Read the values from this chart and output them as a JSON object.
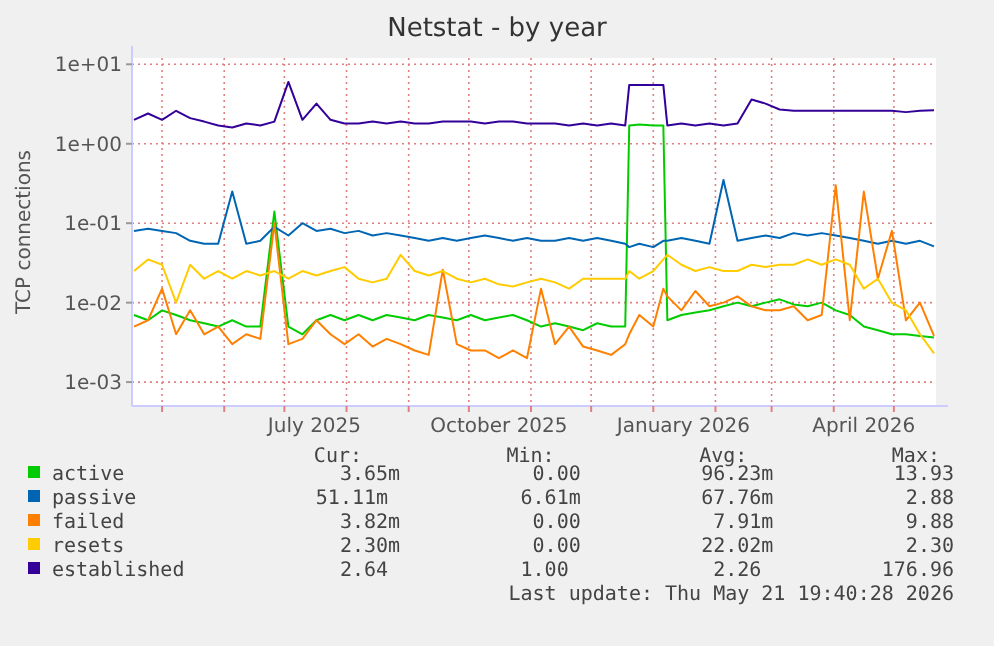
{
  "chart_data": {
    "type": "line",
    "title": "Netstat - by year",
    "ylabel": "TCP connections",
    "log": "y",
    "grid": true,
    "legend": "bottom",
    "marker": "none",
    "line_style": "solid",
    "ylim": [
      0.0005,
      12
    ],
    "yticks": [
      {
        "value": 0.001,
        "label": "1e-03"
      },
      {
        "value": 0.01,
        "label": "1e-02"
      },
      {
        "value": 0.1,
        "label": "1e-01"
      },
      {
        "value": 1,
        "label": "1e+00"
      },
      {
        "value": 10,
        "label": "1e+01"
      }
    ],
    "xlim": [
      "2025-04-16",
      "2026-05-22"
    ],
    "xticks": [
      {
        "value": "2025-05-01",
        "label": null
      },
      {
        "value": "2025-06-01",
        "label": null
      },
      {
        "value": "2025-07-01",
        "label": null
      },
      {
        "value": "2025-07-16",
        "label": "July 2025"
      },
      {
        "value": "2025-08-01",
        "label": null
      },
      {
        "value": "2025-09-01",
        "label": null
      },
      {
        "value": "2025-10-01",
        "label": null
      },
      {
        "value": "2025-10-16",
        "label": "October 2025"
      },
      {
        "value": "2025-11-01",
        "label": null
      },
      {
        "value": "2025-12-01",
        "label": null
      },
      {
        "value": "2026-01-01",
        "label": null
      },
      {
        "value": "2026-01-16",
        "label": "January 2026"
      },
      {
        "value": "2026-02-01",
        "label": null
      },
      {
        "value": "2026-03-01",
        "label": null
      },
      {
        "value": "2026-04-01",
        "label": null
      },
      {
        "value": "2026-04-16",
        "label": "April 2026"
      },
      {
        "value": "2026-05-01",
        "label": null
      }
    ],
    "x": [
      "2025-04-17",
      "2025-04-24",
      "2025-05-01",
      "2025-05-08",
      "2025-05-15",
      "2025-05-22",
      "2025-05-29",
      "2025-06-05",
      "2025-06-12",
      "2025-06-19",
      "2025-06-26",
      "2025-07-03",
      "2025-07-10",
      "2025-07-17",
      "2025-07-24",
      "2025-07-31",
      "2025-08-07",
      "2025-08-14",
      "2025-08-21",
      "2025-08-28",
      "2025-09-04",
      "2025-09-11",
      "2025-09-18",
      "2025-09-25",
      "2025-10-02",
      "2025-10-09",
      "2025-10-16",
      "2025-10-23",
      "2025-10-30",
      "2025-11-06",
      "2025-11-13",
      "2025-11-20",
      "2025-11-27",
      "2025-12-04",
      "2025-12-11",
      "2025-12-18",
      "2025-12-20",
      "2025-12-25",
      "2026-01-01",
      "2026-01-06",
      "2026-01-08",
      "2026-01-15",
      "2026-01-22",
      "2026-01-29",
      "2026-02-05",
      "2026-02-12",
      "2026-02-19",
      "2026-02-26",
      "2026-03-05",
      "2026-03-12",
      "2026-03-19",
      "2026-03-26",
      "2026-04-02",
      "2026-04-09",
      "2026-04-16",
      "2026-04-23",
      "2026-04-30",
      "2026-05-07",
      "2026-05-14",
      "2026-05-21"
    ],
    "series": [
      {
        "name": "active",
        "color": "#00cc00",
        "values": [
          0.007,
          0.006,
          0.008,
          0.007,
          0.006,
          0.0055,
          0.005,
          0.006,
          0.005,
          0.005,
          0.14,
          0.005,
          0.004,
          0.006,
          0.007,
          0.006,
          0.007,
          0.006,
          0.007,
          0.0065,
          0.006,
          0.007,
          0.0065,
          0.006,
          0.007,
          0.006,
          0.0065,
          0.007,
          0.006,
          0.005,
          0.0055,
          0.005,
          0.0045,
          0.0055,
          0.005,
          0.005,
          1.7,
          1.75,
          1.7,
          1.7,
          0.006,
          0.007,
          0.0075,
          0.008,
          0.009,
          0.01,
          0.009,
          0.01,
          0.011,
          0.0095,
          0.009,
          0.01,
          0.008,
          0.007,
          0.005,
          0.0045,
          0.004,
          0.004,
          0.0038,
          0.00365
        ]
      },
      {
        "name": "passive",
        "color": "#0066b3",
        "values": [
          0.08,
          0.085,
          0.08,
          0.075,
          0.06,
          0.055,
          0.055,
          0.25,
          0.055,
          0.06,
          0.09,
          0.07,
          0.1,
          0.08,
          0.085,
          0.075,
          0.08,
          0.07,
          0.075,
          0.07,
          0.065,
          0.06,
          0.065,
          0.06,
          0.065,
          0.07,
          0.065,
          0.06,
          0.065,
          0.06,
          0.06,
          0.065,
          0.06,
          0.065,
          0.06,
          0.055,
          0.05,
          0.055,
          0.05,
          0.06,
          0.06,
          0.065,
          0.06,
          0.055,
          0.35,
          0.06,
          0.065,
          0.07,
          0.065,
          0.075,
          0.07,
          0.075,
          0.07,
          0.065,
          0.06,
          0.055,
          0.06,
          0.055,
          0.06,
          0.0511
        ]
      },
      {
        "name": "failed",
        "color": "#ff8000",
        "values": [
          0.005,
          0.006,
          0.015,
          0.004,
          0.008,
          0.004,
          0.005,
          0.003,
          0.004,
          0.0035,
          0.1,
          0.003,
          0.0035,
          0.006,
          0.004,
          0.003,
          0.004,
          0.0028,
          0.0035,
          0.003,
          0.0025,
          0.0022,
          0.026,
          0.003,
          0.0025,
          0.0025,
          0.002,
          0.0025,
          0.002,
          0.015,
          0.003,
          0.005,
          0.0028,
          0.0025,
          0.0022,
          0.003,
          0.004,
          0.007,
          0.005,
          0.015,
          0.012,
          0.008,
          0.014,
          0.009,
          0.01,
          0.012,
          0.009,
          0.008,
          0.008,
          0.009,
          0.006,
          0.007,
          0.3,
          0.006,
          0.25,
          0.02,
          0.08,
          0.006,
          0.01,
          0.00382
        ]
      },
      {
        "name": "resets",
        "color": "#ffcc00",
        "values": [
          0.025,
          0.035,
          0.03,
          0.01,
          0.03,
          0.02,
          0.025,
          0.02,
          0.025,
          0.022,
          0.025,
          0.02,
          0.025,
          0.022,
          0.025,
          0.028,
          0.02,
          0.018,
          0.02,
          0.04,
          0.025,
          0.022,
          0.025,
          0.02,
          0.018,
          0.02,
          0.017,
          0.016,
          0.018,
          0.02,
          0.018,
          0.015,
          0.02,
          0.02,
          0.02,
          0.02,
          0.025,
          0.02,
          0.025,
          0.035,
          0.04,
          0.03,
          0.025,
          0.028,
          0.025,
          0.025,
          0.03,
          0.028,
          0.03,
          0.03,
          0.035,
          0.03,
          0.035,
          0.03,
          0.015,
          0.02,
          0.01,
          0.008,
          0.004,
          0.0023
        ]
      },
      {
        "name": "established",
        "color": "#330099",
        "values": [
          2.0,
          2.4,
          2.0,
          2.6,
          2.1,
          1.9,
          1.7,
          1.6,
          1.8,
          1.7,
          1.9,
          6.0,
          2.0,
          3.2,
          2.0,
          1.8,
          1.8,
          1.9,
          1.8,
          1.9,
          1.8,
          1.8,
          1.9,
          1.9,
          1.9,
          1.8,
          1.9,
          1.9,
          1.8,
          1.8,
          1.8,
          1.7,
          1.8,
          1.7,
          1.8,
          1.7,
          5.5,
          5.5,
          5.5,
          5.5,
          1.7,
          1.8,
          1.7,
          1.8,
          1.7,
          1.8,
          3.6,
          3.2,
          2.7,
          2.6,
          2.6,
          2.6,
          2.6,
          2.6,
          2.6,
          2.6,
          2.6,
          2.5,
          2.6,
          2.64
        ]
      }
    ],
    "annotations": [
      "Cur:            Min:            Avg:            Max:",
      "3.65m           0.00          96.23m          13.93",
      "51.11m           6.61m          67.76m           2.88",
      "3.82m           0.00           7.91m           9.88",
      "2.30m           0.00          22.02m           2.30",
      "2.64           1.00            2.26          176.96",
      "Last update: Thu May 21 19:40:28 2026"
    ]
  }
}
